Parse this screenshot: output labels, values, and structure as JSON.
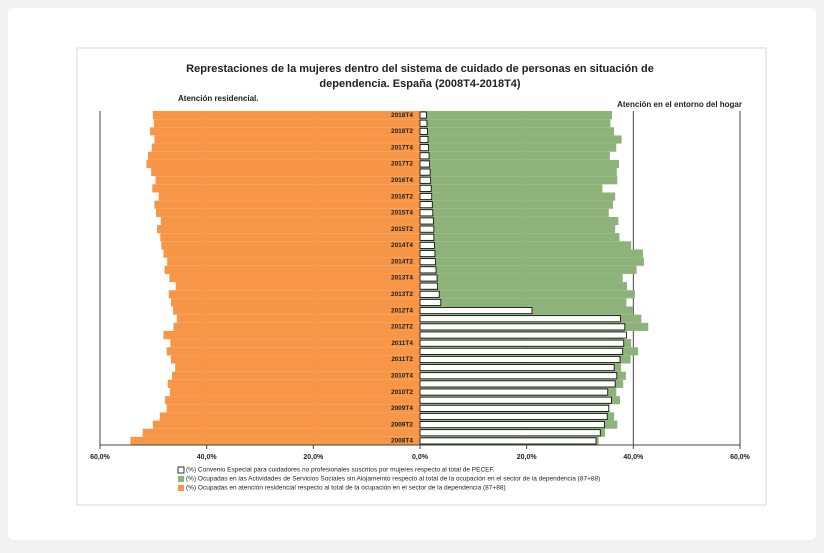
{
  "chart_data": {
    "type": "pyramid",
    "title": "Represtaciones de la mujeres dentro del  sistema de cuidado de personas en situación de",
    "subtitle": "dependencia. España (2008T4-2018T4)",
    "annotations": [
      "Atención residencial.",
      "Atención en el entorno del hogar"
    ],
    "categories": [
      "2008T4",
      null,
      "2009T2",
      null,
      "2009T4",
      null,
      "2010T2",
      null,
      "2010T4",
      null,
      "2011T2",
      null,
      "2011T4",
      null,
      "2012T2",
      null,
      "2012T4",
      null,
      "2013T2",
      null,
      "2013T4",
      null,
      "2014T2",
      null,
      "2014T4",
      null,
      "2015T2",
      null,
      "2015T4",
      null,
      "2016T2",
      null,
      "2016T4",
      null,
      "2017T2",
      null,
      "2017T4",
      null,
      "2018T2",
      null,
      "2018T4"
    ],
    "series": [
      {
        "name": "(%) Convenio Especial para cuidadores no profesionales suscritos por mujeres respecto al total de PECEF.",
        "color": "#ffffff",
        "edgecolor": "#000000",
        "values": [
          33.0,
          33.8,
          34.6,
          35.1,
          35.4,
          35.9,
          35.2,
          36.6,
          36.9,
          36.4,
          37.5,
          38.0,
          38.2,
          38.7,
          38.4,
          37.6,
          21.0,
          3.9,
          3.6,
          3.3,
          3.2,
          3.0,
          2.9,
          2.8,
          2.7,
          2.6,
          2.6,
          2.5,
          2.4,
          2.3,
          2.2,
          2.1,
          2.0,
          1.9,
          1.8,
          1.7,
          1.6,
          1.5,
          1.4,
          1.3,
          1.2
        ]
      },
      {
        "name": "(%) Ocupadas en las Actividades de Servicios Sociales sin Alojameinto respecto al total de la ocupación en el sector de la dependencia (87+88)",
        "color": "#8db37a",
        "values": [
          33.5,
          34.7,
          37.0,
          36.4,
          35.5,
          37.5,
          36.8,
          38.1,
          38.6,
          37.7,
          39.5,
          40.9,
          39.6,
          38.2,
          42.8,
          41.5,
          39.9,
          38.7,
          40.3,
          38.8,
          38.0,
          40.6,
          42.0,
          41.8,
          39.6,
          37.4,
          36.6,
          37.2,
          35.4,
          36.2,
          36.6,
          34.2,
          37.0,
          36.9,
          37.3,
          35.6,
          36.8,
          37.8,
          36.4,
          35.7,
          36.0
        ]
      },
      {
        "name": "(%) Ocupadas en atención residencial respecto al total de la ocupación en el sector de la dependencia (87+88)",
        "color": "#f79646",
        "values": [
          -54.3,
          -52.0,
          -50.1,
          -48.8,
          -47.5,
          -47.8,
          -46.9,
          -47.3,
          -46.5,
          -45.9,
          -46.7,
          -47.5,
          -46.8,
          -48.1,
          -46.2,
          -45.6,
          -46.3,
          -46.7,
          -47.1,
          -45.8,
          -47.0,
          -47.9,
          -47.4,
          -48.1,
          -48.5,
          -48.7,
          -49.3,
          -48.6,
          -49.5,
          -49.8,
          -49.0,
          -50.2,
          -49.6,
          -50.4,
          -51.3,
          -51.0,
          -50.3,
          -49.8,
          -50.6,
          -49.9,
          -50.1
        ]
      }
    ],
    "xlim": [
      -60,
      60
    ],
    "xticks": [
      {
        "value": -60,
        "label": "60,0%"
      },
      {
        "value": -40,
        "label": "40,0%"
      },
      {
        "value": -20,
        "label": "20,0%"
      },
      {
        "value": 0,
        "label": "0,0%"
      },
      {
        "value": 20,
        "label": "20,0%"
      },
      {
        "value": 40,
        "label": "40,0%"
      },
      {
        "value": 60,
        "label": "60,0%"
      }
    ],
    "grid": true
  }
}
